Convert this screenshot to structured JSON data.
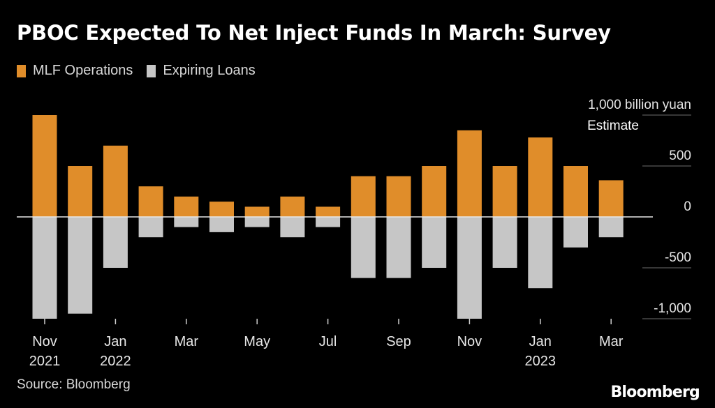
{
  "colors": {
    "mlf": "#e08d2a",
    "expiring": "#c6c6c6",
    "background": "#000000",
    "grid": "#6e6e6e"
  },
  "chart_data": {
    "type": "bar",
    "title": "PBOC Expected To Net Inject Funds In March: Survey",
    "unit_label": "1,000 billion yuan",
    "annotation": "Estimate",
    "source": "Source: Bloomberg",
    "brand": "Bloomberg",
    "ylim": [
      -1050,
      1050
    ],
    "yticks": [
      {
        "value": 1000,
        "label": "1,000 billion yuan"
      },
      {
        "value": 500,
        "label": "500"
      },
      {
        "value": 0,
        "label": "0"
      },
      {
        "value": -500,
        "label": "-500"
      },
      {
        "value": -1000,
        "label": "-1,000"
      }
    ],
    "categories": [
      "Nov 2021",
      "Dec 2021",
      "Jan 2022",
      "Feb 2022",
      "Mar 2022",
      "Apr 2022",
      "May 2022",
      "Jun 2022",
      "Jul 2022",
      "Aug 2022",
      "Sep 2022",
      "Oct 2022",
      "Nov 2022",
      "Dec 2022",
      "Jan 2023",
      "Feb 2023",
      "Mar 2023"
    ],
    "xticks": [
      {
        "index": 0,
        "line1": "Nov",
        "line2": "2021"
      },
      {
        "index": 2,
        "line1": "Jan",
        "line2": "2022"
      },
      {
        "index": 4,
        "line1": "Mar",
        "line2": ""
      },
      {
        "index": 6,
        "line1": "May",
        "line2": ""
      },
      {
        "index": 8,
        "line1": "Jul",
        "line2": ""
      },
      {
        "index": 10,
        "line1": "Sep",
        "line2": ""
      },
      {
        "index": 12,
        "line1": "Nov",
        "line2": ""
      },
      {
        "index": 14,
        "line1": "Jan",
        "line2": "2023"
      },
      {
        "index": 16,
        "line1": "Mar",
        "line2": ""
      }
    ],
    "series": [
      {
        "name": "MLF Operations",
        "color": "#e08d2a",
        "values": [
          1000,
          500,
          700,
          300,
          200,
          150,
          100,
          200,
          100,
          400,
          400,
          500,
          850,
          500,
          780,
          500,
          360
        ]
      },
      {
        "name": "Expiring Loans",
        "color": "#c6c6c6",
        "values": [
          -1000,
          -950,
          -500,
          -200,
          -100,
          -150,
          -100,
          -200,
          -100,
          -600,
          -600,
          -500,
          -1000,
          -500,
          -700,
          -300,
          -200
        ]
      }
    ]
  }
}
